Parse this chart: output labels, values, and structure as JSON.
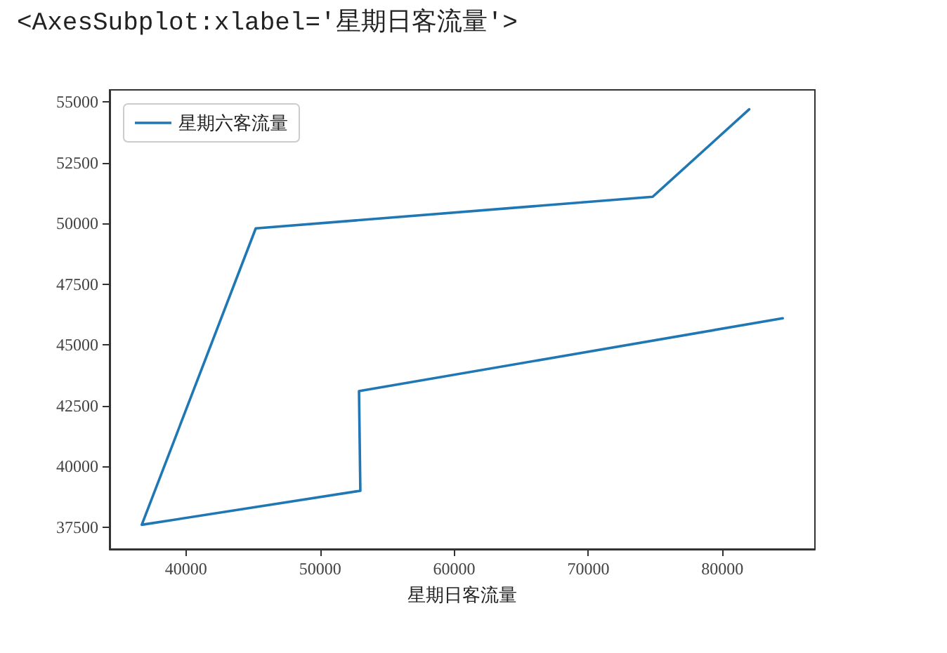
{
  "chart_data": {
    "type": "line",
    "annotations": [
      "<AxesSubplot:xlabel='星期日客流量'>"
    ],
    "xlabel": "星期日客流量",
    "series": [
      {
        "name": "星期六客流量",
        "color": "#1f77b4",
        "x": [
          82000,
          74800,
          45200,
          36700,
          53000,
          52900,
          84500
        ],
        "values": [
          54700,
          51100,
          49800,
          37600,
          39000,
          43100,
          46100
        ]
      }
    ],
    "xlim": [
      34300,
      86900
    ],
    "xticks": [
      40000,
      50000,
      60000,
      70000,
      80000
    ],
    "ylim": [
      36600,
      55500
    ],
    "yticks": [
      37500,
      40000,
      42500,
      45000,
      47500,
      50000,
      52500,
      55000
    ],
    "grid": false,
    "legend": "top left",
    "marker": "none",
    "line_style": "solid"
  }
}
